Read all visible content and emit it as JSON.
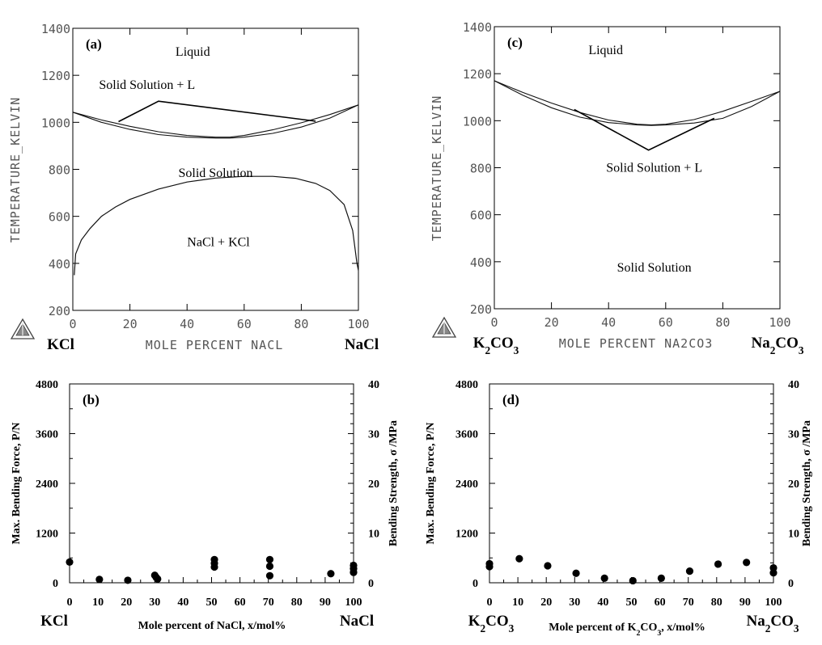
{
  "chart_data": [
    {
      "type": "phase_diagram",
      "panel": "(a)",
      "ylabel": "TEMPERATURE_KELVIN",
      "xlabel": "MOLE PERCENT NACL",
      "xlim": [
        0,
        100
      ],
      "ylim": [
        200,
        1400
      ],
      "xticks": [
        "0",
        "20",
        "40",
        "60",
        "80",
        "100"
      ],
      "yticks": [
        "200",
        "400",
        "600",
        "800",
        "1000",
        "1200",
        "1400"
      ],
      "left_component": "KCl",
      "right_component": "NaCl",
      "region_labels": [
        {
          "text": "Liquid",
          "x": 42,
          "y": 1300
        },
        {
          "text": "Solid Solution + L",
          "x": 26,
          "y": 1160
        },
        {
          "text": "Solid Solution",
          "x": 50,
          "y": 785
        },
        {
          "text": "NaCl + KCl",
          "x": 51,
          "y": 490
        }
      ],
      "liquidus": [
        [
          0,
          1043
        ],
        [
          10,
          1010
        ],
        [
          20,
          983
        ],
        [
          30,
          960
        ],
        [
          40,
          944
        ],
        [
          50,
          937
        ],
        [
          55,
          937
        ],
        [
          60,
          944
        ],
        [
          70,
          968
        ],
        [
          80,
          998
        ],
        [
          90,
          1033
        ],
        [
          100,
          1074
        ]
      ],
      "solidus": [
        [
          0,
          1043
        ],
        [
          10,
          1000
        ],
        [
          20,
          970
        ],
        [
          30,
          948
        ],
        [
          40,
          937
        ],
        [
          50,
          933
        ],
        [
          55,
          933
        ],
        [
          60,
          937
        ],
        [
          70,
          953
        ],
        [
          80,
          980
        ],
        [
          90,
          1018
        ],
        [
          100,
          1074
        ]
      ],
      "solvus": [
        [
          0.5,
          350
        ],
        [
          1,
          440
        ],
        [
          3,
          500
        ],
        [
          6,
          548
        ],
        [
          10,
          600
        ],
        [
          15,
          640
        ],
        [
          20,
          672
        ],
        [
          30,
          716
        ],
        [
          40,
          746
        ],
        [
          50,
          763
        ],
        [
          60,
          770
        ],
        [
          70,
          770
        ],
        [
          78,
          762
        ],
        [
          85,
          740
        ],
        [
          90,
          710
        ],
        [
          95,
          650
        ],
        [
          98,
          540
        ],
        [
          99.5,
          400
        ],
        [
          100,
          370
        ]
      ],
      "tie_lines": [
        [
          [
            16,
            1003
          ],
          [
            30,
            1090
          ],
          [
            85,
            1005
          ]
        ]
      ]
    },
    {
      "type": "scatter",
      "panel": "(b)",
      "ylabel": "Max. Bending Force, P/N",
      "y2label": "Bending Strength, σ /MPa",
      "xlabel": "Mole percent of NaCl, x/mol%",
      "xlim": [
        0,
        100
      ],
      "ylim": [
        0,
        4800
      ],
      "y2lim": [
        0,
        40
      ],
      "xticks": [
        "0",
        "10",
        "20",
        "30",
        "40",
        "50",
        "60",
        "70",
        "80",
        "90",
        "100"
      ],
      "yticks": [
        "0",
        "1200",
        "2400",
        "3600",
        "4800"
      ],
      "y2ticks": [
        "0",
        "10",
        "20",
        "30",
        "40"
      ],
      "left_component": "KCl",
      "right_component": "NaCl",
      "points": [
        [
          0,
          500
        ],
        [
          10.5,
          80
        ],
        [
          20.5,
          60
        ],
        [
          30,
          180
        ],
        [
          30.5,
          130
        ],
        [
          31,
          90
        ],
        [
          51,
          560
        ],
        [
          51,
          470
        ],
        [
          51,
          380
        ],
        [
          70.5,
          560
        ],
        [
          70.5,
          400
        ],
        [
          70.5,
          170
        ],
        [
          92,
          220
        ],
        [
          100,
          420
        ],
        [
          100,
          340
        ],
        [
          100,
          250
        ]
      ]
    },
    {
      "type": "phase_diagram",
      "panel": "(c)",
      "ylabel": "TEMPERATURE_KELVIN",
      "xlabel": "MOLE PERCENT NA2CO3",
      "xlim": [
        0,
        100
      ],
      "ylim": [
        200,
        1400
      ],
      "xticks": [
        "0",
        "20",
        "40",
        "60",
        "80",
        "100"
      ],
      "yticks": [
        "200",
        "400",
        "600",
        "800",
        "1000",
        "1200",
        "1400"
      ],
      "left_component": "K₂CO₃",
      "right_component": "Na₂CO₃",
      "region_labels": [
        {
          "text": "Liquid",
          "x": 39,
          "y": 1300
        },
        {
          "text": "Solid Solution + L",
          "x": 56,
          "y": 800
        },
        {
          "text": "Solid Solution",
          "x": 56,
          "y": 375
        }
      ],
      "liquidus": [
        [
          0,
          1170
        ],
        [
          10,
          1120
        ],
        [
          20,
          1075
        ],
        [
          30,
          1035
        ],
        [
          40,
          1003
        ],
        [
          50,
          985
        ],
        [
          55,
          982
        ],
        [
          60,
          985
        ],
        [
          70,
          1005
        ],
        [
          80,
          1040
        ],
        [
          90,
          1082
        ],
        [
          100,
          1125
        ]
      ],
      "solidus": [
        [
          0,
          1170
        ],
        [
          10,
          1108
        ],
        [
          20,
          1055
        ],
        [
          30,
          1015
        ],
        [
          40,
          992
        ],
        [
          50,
          982
        ],
        [
          55,
          980
        ],
        [
          60,
          982
        ],
        [
          70,
          990
        ],
        [
          80,
          1010
        ],
        [
          90,
          1060
        ],
        [
          100,
          1125
        ]
      ],
      "solvus": [],
      "tie_lines": [
        [
          [
            28,
            1048
          ],
          [
            54,
            875
          ],
          [
            77,
            1010
          ]
        ]
      ]
    },
    {
      "type": "scatter",
      "panel": "(d)",
      "ylabel": "Max. Bending Force, P/N",
      "y2label": "Bending Strength, σ /MPa",
      "xlabel": "Mole percent of K₂CO₃, x/mol%",
      "xlim": [
        0,
        100
      ],
      "ylim": [
        0,
        4800
      ],
      "y2lim": [
        0,
        40
      ],
      "xticks": [
        "0",
        "10",
        "20",
        "30",
        "40",
        "50",
        "60",
        "70",
        "80",
        "90",
        "100"
      ],
      "yticks": [
        "0",
        "1200",
        "2400",
        "3600",
        "4800"
      ],
      "y2ticks": [
        "0",
        "10",
        "20",
        "30",
        "40"
      ],
      "left_component": "K₂CO₃",
      "right_component": "Na₂CO₃",
      "points": [
        [
          0,
          460
        ],
        [
          0,
          390
        ],
        [
          10.5,
          580
        ],
        [
          20.5,
          410
        ],
        [
          30.5,
          230
        ],
        [
          40.5,
          110
        ],
        [
          50.5,
          50
        ],
        [
          60.5,
          110
        ],
        [
          70.5,
          280
        ],
        [
          80.5,
          450
        ],
        [
          90.5,
          490
        ],
        [
          100,
          360
        ],
        [
          100,
          240
        ]
      ]
    }
  ]
}
